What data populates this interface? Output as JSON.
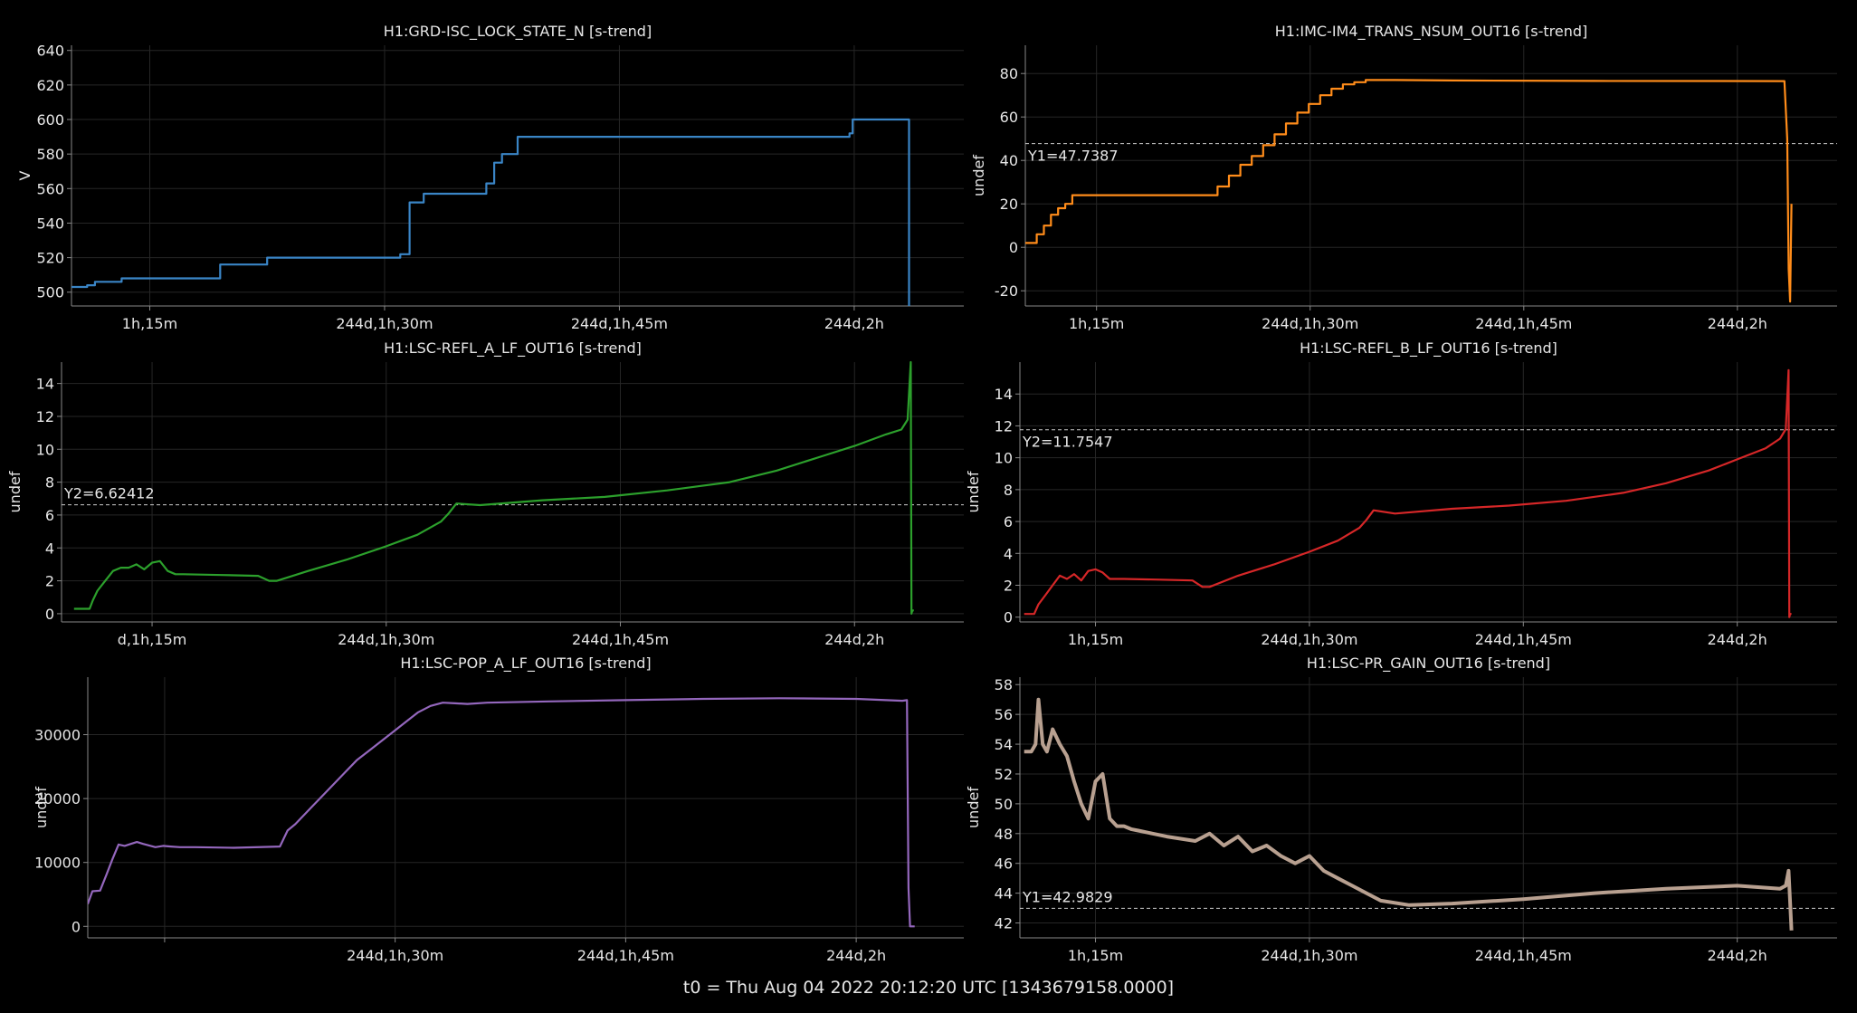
{
  "footer": "t0 = Thu Aug 04 2022 20:12:20 UTC [1343679158.0000]",
  "x_axis_time": {
    "comment_units": "minutes after 1h,10m on day 244",
    "tick_labels": [
      "1h,15m",
      "244d,1h,30m",
      "244d,1h,45m",
      "244d,2h"
    ],
    "tick_minutes": [
      5,
      20,
      35,
      50
    ],
    "xlim": [
      0,
      57
    ]
  },
  "chart_data": [
    {
      "type": "line",
      "title": "H1:GRD-ISC_LOCK_STATE_N [s-trend]",
      "ylabel": "V",
      "color": "#3a85c6",
      "ylim": [
        492,
        643
      ],
      "yticks": [
        500,
        520,
        540,
        560,
        580,
        600,
        620,
        640
      ],
      "xtick_labels": [
        "1h,15m",
        "244d,1h,30m",
        "244d,1h,45m",
        "244d,2h"
      ],
      "series": [
        {
          "x": [
            0,
            1.0,
            1.0,
            1.5,
            1.5,
            3.2,
            3.2,
            4.8,
            4.8,
            9.5,
            9.5,
            12.5,
            12.5,
            13.0,
            13.0,
            21.0,
            21.0,
            21.6,
            21.6,
            22.5,
            22.5,
            26.5,
            26.5,
            27.0,
            27.0,
            27.5,
            27.5,
            28.5,
            28.5,
            49.7,
            49.7,
            49.9,
            49.9,
            53.5,
            53.5
          ],
          "y": [
            503,
            503,
            504,
            504,
            506,
            506,
            508,
            508,
            508,
            508,
            516,
            516,
            520,
            520,
            520,
            520,
            522,
            522,
            552,
            552,
            557,
            557,
            563,
            563,
            575,
            575,
            580,
            580,
            590,
            590,
            592,
            592,
            600,
            600,
            492
          ]
        }
      ],
      "annotations": []
    },
    {
      "type": "line",
      "title": "H1:IMC-IM4_TRANS_NSUM_OUT16 [s-trend]",
      "ylabel": "undef",
      "color": "#ff8c1a",
      "ylim": [
        -27,
        93
      ],
      "yticks": [
        -20,
        0,
        20,
        40,
        60,
        80
      ],
      "xtick_labels": [
        "1h,15m",
        "244d,1h,30m",
        "244d,1h,45m",
        "244d,2h"
      ],
      "series": [
        {
          "x": [
            0,
            0.8,
            0.8,
            1.3,
            1.3,
            1.8,
            1.8,
            2.3,
            2.3,
            2.8,
            2.8,
            3.3,
            3.3,
            3.8,
            3.8,
            13.5,
            13.5,
            14.3,
            14.3,
            15.1,
            15.1,
            15.9,
            15.9,
            16.7,
            16.7,
            17.5,
            17.5,
            18.3,
            18.3,
            19.1,
            19.1,
            19.9,
            19.9,
            20.7,
            20.7,
            21.5,
            21.5,
            22.3,
            22.3,
            23.1,
            23.1,
            23.9,
            23.9,
            24.7,
            24.7,
            26.0,
            30.0,
            40.0,
            53.3,
            53.5,
            53.6,
            53.7,
            53.8
          ],
          "y": [
            2,
            2,
            6,
            6,
            10,
            10,
            15,
            15,
            18,
            18,
            20,
            20,
            24,
            24,
            24,
            24,
            28,
            28,
            33,
            33,
            38,
            38,
            42,
            42,
            47,
            47,
            52,
            52,
            57,
            57,
            62,
            62,
            66,
            66,
            70,
            70,
            73,
            73,
            75,
            75,
            76,
            76,
            77,
            77,
            77,
            77,
            76.8,
            76.6,
            76.5,
            50,
            -10,
            -25,
            20
          ]
        }
      ],
      "annotations": [
        {
          "label": "Y1=47.7387",
          "y": 47.7387
        }
      ]
    },
    {
      "type": "line",
      "title": "H1:LSC-REFL_A_LF_OUT16 [s-trend]",
      "ylabel": "undef",
      "color": "#2ca02c",
      "ylim": [
        -0.5,
        15.3
      ],
      "yticks": [
        0,
        2,
        4,
        6,
        8,
        10,
        12,
        14
      ],
      "xtick_labels": [
        "d,1h,15m",
        "244d,1h,30m",
        "244d,1h,45m",
        "244d,2h"
      ],
      "series": [
        {
          "x": [
            0,
            1.0,
            1.2,
            1.5,
            2.0,
            2.5,
            3.0,
            3.5,
            4.0,
            4.5,
            5.0,
            5.5,
            6.0,
            6.5,
            7.0,
            9.5,
            11.8,
            12.5,
            13.0,
            15.0,
            17.5,
            20.0,
            22.0,
            23.5,
            24.0,
            24.5,
            26.0,
            30.0,
            34.0,
            38.0,
            42.0,
            45.0,
            48.0,
            50.0,
            52.0,
            53.0,
            53.4,
            53.6,
            53.65,
            53.7,
            53.8
          ],
          "y": [
            0.3,
            0.3,
            0.8,
            1.4,
            2.0,
            2.6,
            2.8,
            2.8,
            3.0,
            2.7,
            3.1,
            3.2,
            2.6,
            2.4,
            2.4,
            2.35,
            2.3,
            2.0,
            2.0,
            2.6,
            3.3,
            4.1,
            4.8,
            5.6,
            6.1,
            6.7,
            6.6,
            6.9,
            7.1,
            7.5,
            8.0,
            8.7,
            9.6,
            10.2,
            10.9,
            11.2,
            11.8,
            15.3,
            0.0,
            0.2,
            0.2
          ]
        }
      ],
      "annotations": [
        {
          "label": "Y2=6.62412",
          "y": 6.62412
        }
      ]
    },
    {
      "type": "line",
      "title": "H1:LSC-REFL_B_LF_OUT16 [s-trend]",
      "ylabel": "undef",
      "color": "#d62728",
      "ylim": [
        -0.3,
        16.0
      ],
      "yticks": [
        0,
        2,
        4,
        6,
        8,
        10,
        12,
        14
      ],
      "xtick_labels": [
        "1h,15m",
        "244d,1h,30m",
        "244d,1h,45m",
        "244d,2h"
      ],
      "series": [
        {
          "x": [
            0,
            0.7,
            1.0,
            1.5,
            2.0,
            2.5,
            3.0,
            3.5,
            4.0,
            4.5,
            5.0,
            5.5,
            6.0,
            6.5,
            7.0,
            9.5,
            11.8,
            12.5,
            13.0,
            15.0,
            17.5,
            20.0,
            22.0,
            23.5,
            24.0,
            24.5,
            26.0,
            30.0,
            34.0,
            38.0,
            42.0,
            45.0,
            48.0,
            50.0,
            52.0,
            53.0,
            53.4,
            53.6,
            53.65,
            53.7,
            53.8
          ],
          "y": [
            0.2,
            0.2,
            0.8,
            1.4,
            2.0,
            2.6,
            2.4,
            2.7,
            2.3,
            2.9,
            3.0,
            2.8,
            2.4,
            2.4,
            2.4,
            2.35,
            2.3,
            1.9,
            1.9,
            2.6,
            3.3,
            4.1,
            4.8,
            5.6,
            6.1,
            6.7,
            6.5,
            6.8,
            7.0,
            7.3,
            7.8,
            8.4,
            9.2,
            9.9,
            10.6,
            11.2,
            11.8,
            15.5,
            0.0,
            0.2,
            0.2
          ]
        }
      ],
      "annotations": [
        {
          "label": "Y2=11.7547",
          "y": 11.7547
        }
      ]
    },
    {
      "type": "line",
      "title": "H1:LSC-POP_A_LF_OUT16 [s-trend]",
      "ylabel": "undef",
      "color": "#9467bd",
      "ylim": [
        -1800,
        39000
      ],
      "yticks": [
        0,
        10000,
        20000,
        30000
      ],
      "xtick_labels": [
        "",
        "244d,1h,30m",
        "244d,1h,45m",
        "244d,2h"
      ],
      "series": [
        {
          "x": [
            0,
            0.3,
            0.8,
            1.2,
            1.6,
            2.0,
            2.4,
            2.8,
            3.2,
            3.6,
            4.4,
            4.9,
            5.4,
            6.0,
            7.0,
            9.5,
            12.5,
            13.0,
            13.5,
            14.3,
            15.1,
            15.9,
            16.7,
            17.5,
            18.3,
            19.1,
            19.9,
            20.7,
            21.5,
            22.3,
            23.1,
            23.9,
            24.7,
            26.0,
            30.0,
            35.0,
            40.0,
            45.0,
            50.0,
            53.0,
            53.3,
            53.4,
            53.5,
            53.8
          ],
          "y": [
            3500,
            5500,
            5600,
            8000,
            10500,
            12800,
            12600,
            12900,
            13200,
            12900,
            12400,
            12600,
            12500,
            12400,
            12400,
            12300,
            12500,
            15000,
            16000,
            18000,
            20000,
            22000,
            24000,
            26000,
            27500,
            29000,
            30500,
            32000,
            33500,
            34500,
            35000,
            34900,
            34800,
            35000,
            35200,
            35400,
            35600,
            35700,
            35600,
            35300,
            35400,
            6000,
            0,
            0
          ]
        }
      ],
      "annotations": []
    },
    {
      "type": "line",
      "title": "H1:LSC-PR_GAIN_OUT16 [s-trend]",
      "ylabel": "undef",
      "color": "#b8a090",
      "ylim": [
        41,
        58.5
      ],
      "yticks": [
        42,
        44,
        46,
        48,
        50,
        52,
        54,
        56,
        58
      ],
      "xtick_labels": [
        "1h,15m",
        "244d,1h,30m",
        "244d,1h,45m",
        "244d,2h"
      ],
      "series": [
        {
          "x": [
            0,
            0.5,
            0.8,
            1.0,
            1.3,
            1.6,
            2.0,
            2.5,
            3.0,
            3.5,
            4.0,
            4.5,
            5.0,
            5.5,
            6.0,
            6.5,
            7.0,
            7.5,
            8.0,
            9.0,
            10.0,
            12.0,
            13.0,
            14.0,
            15.0,
            16.0,
            17.0,
            18.0,
            19.0,
            20.0,
            21.0,
            22.0,
            23.0,
            24.0,
            25.0,
            27.0,
            30.0,
            35.0,
            40.0,
            45.0,
            50.0,
            53.0,
            53.4,
            53.6,
            53.8
          ],
          "y": [
            53.5,
            53.5,
            54.0,
            57.0,
            54.0,
            53.5,
            55.0,
            54.0,
            53.2,
            51.5,
            50.0,
            49.0,
            51.5,
            52.0,
            49.0,
            48.5,
            48.5,
            48.3,
            48.2,
            48.0,
            47.8,
            47.5,
            48.0,
            47.2,
            47.8,
            46.8,
            47.2,
            46.5,
            46.0,
            46.5,
            45.5,
            45.0,
            44.5,
            44.0,
            43.5,
            43.2,
            43.3,
            43.6,
            44.0,
            44.3,
            44.5,
            44.3,
            44.5,
            45.5,
            41.5
          ]
        }
      ],
      "annotations": [
        {
          "label": "Y1=42.9829",
          "y": 42.9829
        }
      ]
    }
  ]
}
